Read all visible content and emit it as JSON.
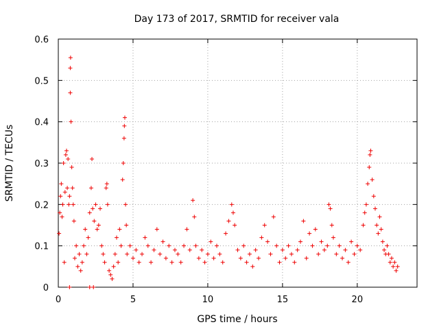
{
  "chart_data": {
    "type": "scatter",
    "title": "Day 173 of 2017, SRMTID for receiver vala",
    "xlabel": "GPS time / hours",
    "ylabel": "SRMTID / TECUs",
    "xlim": [
      0,
      24
    ],
    "ylim": [
      0,
      0.6
    ],
    "xticks": [
      0,
      5,
      10,
      15,
      20
    ],
    "xtick_labels": [
      "0",
      "5",
      "10",
      "15",
      "20"
    ],
    "yticks": [
      0,
      0.1,
      0.2,
      0.3,
      0.4,
      0.5,
      0.6
    ],
    "ytick_labels": [
      "0",
      "0.1",
      "0.2",
      "0.3",
      "0.4",
      "0.5",
      "0.6"
    ],
    "grid": true,
    "marker": "+",
    "color": "#ee0000",
    "series": [
      {
        "name": "SRMTID",
        "points": [
          [
            0.05,
            0.13
          ],
          [
            0.1,
            0.18
          ],
          [
            0.15,
            0.22
          ],
          [
            0.2,
            0.25
          ],
          [
            0.25,
            0.17
          ],
          [
            0.3,
            0.2
          ],
          [
            0.35,
            0.3
          ],
          [
            0.4,
            0.06
          ],
          [
            0.45,
            0.23
          ],
          [
            0.5,
            0.32
          ],
          [
            0.55,
            0.33
          ],
          [
            0.6,
            0.24
          ],
          [
            0.65,
            0.31
          ],
          [
            0.7,
            0.2
          ],
          [
            0.75,
            0.22
          ],
          [
            0.8,
            0.47
          ],
          [
            0.8,
            0.53
          ],
          [
            0.82,
            0.555
          ],
          [
            0.85,
            0.4
          ],
          [
            0.9,
            0.29
          ],
          [
            0.95,
            0.24
          ],
          [
            1.0,
            0.2
          ],
          [
            1.05,
            0.16
          ],
          [
            1.1,
            0.07
          ],
          [
            1.2,
            0.1
          ],
          [
            1.3,
            0.05
          ],
          [
            1.4,
            0.08
          ],
          [
            1.5,
            0.04
          ],
          [
            1.6,
            0.06
          ],
          [
            1.7,
            0.1
          ],
          [
            1.8,
            0.14
          ],
          [
            1.9,
            0.08
          ],
          [
            2.0,
            0.12
          ],
          [
            2.1,
            0.18
          ],
          [
            2.2,
            0.24
          ],
          [
            2.25,
            0.31
          ],
          [
            2.3,
            0.19
          ],
          [
            2.4,
            0.16
          ],
          [
            2.5,
            0.2
          ],
          [
            2.6,
            0.14
          ],
          [
            2.7,
            0.15
          ],
          [
            2.8,
            0.19
          ],
          [
            2.9,
            0.1
          ],
          [
            3.0,
            0.08
          ],
          [
            3.1,
            0.06
          ],
          [
            3.2,
            0.24
          ],
          [
            3.25,
            0.25
          ],
          [
            3.3,
            0.2
          ],
          [
            3.4,
            0.04
          ],
          [
            3.5,
            0.03
          ],
          [
            3.6,
            0.02
          ],
          [
            3.7,
            0.05
          ],
          [
            3.8,
            0.08
          ],
          [
            3.9,
            0.12
          ],
          [
            4.0,
            0.06
          ],
          [
            4.1,
            0.14
          ],
          [
            4.2,
            0.1
          ],
          [
            4.3,
            0.26
          ],
          [
            4.35,
            0.3
          ],
          [
            4.4,
            0.36
          ],
          [
            4.42,
            0.39
          ],
          [
            4.45,
            0.41
          ],
          [
            4.5,
            0.2
          ],
          [
            4.55,
            0.15
          ],
          [
            4.6,
            0.08
          ],
          [
            4.8,
            0.1
          ],
          [
            5.0,
            0.07
          ],
          [
            5.2,
            0.09
          ],
          [
            5.4,
            0.06
          ],
          [
            5.6,
            0.08
          ],
          [
            5.8,
            0.12
          ],
          [
            6.0,
            0.1
          ],
          [
            6.2,
            0.06
          ],
          [
            6.4,
            0.09
          ],
          [
            6.6,
            0.14
          ],
          [
            6.8,
            0.08
          ],
          [
            7.0,
            0.11
          ],
          [
            7.2,
            0.07
          ],
          [
            7.4,
            0.1
          ],
          [
            7.6,
            0.06
          ],
          [
            7.8,
            0.09
          ],
          [
            8.0,
            0.08
          ],
          [
            8.2,
            0.06
          ],
          [
            8.4,
            0.1
          ],
          [
            8.6,
            0.14
          ],
          [
            8.8,
            0.09
          ],
          [
            9.0,
            0.21
          ],
          [
            9.1,
            0.17
          ],
          [
            9.2,
            0.1
          ],
          [
            9.4,
            0.07
          ],
          [
            9.6,
            0.09
          ],
          [
            9.8,
            0.06
          ],
          [
            10.0,
            0.08
          ],
          [
            10.2,
            0.11
          ],
          [
            10.4,
            0.07
          ],
          [
            10.6,
            0.1
          ],
          [
            10.8,
            0.08
          ],
          [
            11.0,
            0.06
          ],
          [
            11.2,
            0.13
          ],
          [
            11.4,
            0.16
          ],
          [
            11.6,
            0.2
          ],
          [
            11.7,
            0.18
          ],
          [
            11.8,
            0.15
          ],
          [
            12.0,
            0.09
          ],
          [
            12.2,
            0.07
          ],
          [
            12.4,
            0.1
          ],
          [
            12.6,
            0.06
          ],
          [
            12.8,
            0.08
          ],
          [
            13.0,
            0.05
          ],
          [
            13.2,
            0.09
          ],
          [
            13.4,
            0.07
          ],
          [
            13.6,
            0.12
          ],
          [
            13.8,
            0.15
          ],
          [
            14.0,
            0.11
          ],
          [
            14.2,
            0.08
          ],
          [
            14.4,
            0.17
          ],
          [
            14.6,
            0.1
          ],
          [
            14.8,
            0.06
          ],
          [
            15.0,
            0.09
          ],
          [
            15.2,
            0.07
          ],
          [
            15.4,
            0.1
          ],
          [
            15.6,
            0.08
          ],
          [
            15.8,
            0.06
          ],
          [
            16.0,
            0.09
          ],
          [
            16.2,
            0.11
          ],
          [
            16.4,
            0.16
          ],
          [
            16.6,
            0.07
          ],
          [
            16.8,
            0.13
          ],
          [
            17.0,
            0.1
          ],
          [
            17.2,
            0.14
          ],
          [
            17.4,
            0.08
          ],
          [
            17.6,
            0.11
          ],
          [
            17.8,
            0.09
          ],
          [
            18.0,
            0.1
          ],
          [
            18.1,
            0.2
          ],
          [
            18.2,
            0.19
          ],
          [
            18.3,
            0.15
          ],
          [
            18.4,
            0.12
          ],
          [
            18.6,
            0.08
          ],
          [
            18.8,
            0.1
          ],
          [
            19.0,
            0.07
          ],
          [
            19.2,
            0.09
          ],
          [
            19.4,
            0.06
          ],
          [
            19.6,
            0.11
          ],
          [
            19.8,
            0.08
          ],
          [
            20.0,
            0.1
          ],
          [
            20.2,
            0.09
          ],
          [
            20.4,
            0.15
          ],
          [
            20.5,
            0.18
          ],
          [
            20.6,
            0.2
          ],
          [
            20.7,
            0.25
          ],
          [
            20.8,
            0.29
          ],
          [
            20.85,
            0.32
          ],
          [
            20.9,
            0.33
          ],
          [
            21.0,
            0.26
          ],
          [
            21.1,
            0.22
          ],
          [
            21.2,
            0.19
          ],
          [
            21.3,
            0.15
          ],
          [
            21.4,
            0.13
          ],
          [
            21.5,
            0.17
          ],
          [
            21.6,
            0.14
          ],
          [
            21.7,
            0.11
          ],
          [
            21.8,
            0.09
          ],
          [
            21.9,
            0.08
          ],
          [
            22.0,
            0.1
          ],
          [
            22.1,
            0.08
          ],
          [
            22.2,
            0.06
          ],
          [
            22.3,
            0.07
          ],
          [
            22.4,
            0.05
          ],
          [
            22.5,
            0.06
          ],
          [
            22.6,
            0.04
          ],
          [
            22.7,
            0.05
          ],
          [
            0.75,
            0.0
          ],
          [
            2.1,
            0.0
          ],
          [
            2.35,
            0.0
          ]
        ]
      }
    ]
  }
}
